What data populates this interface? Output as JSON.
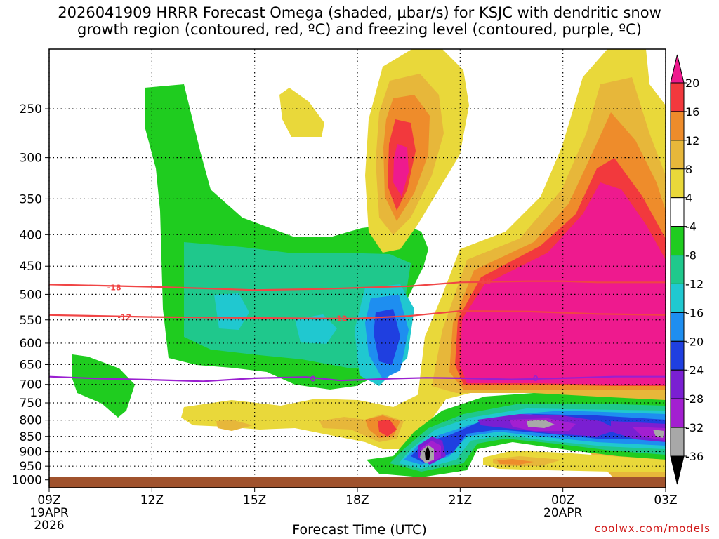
{
  "chart_data": {
    "type": "heatmap",
    "title": "2026041909 HRRR Forecast Omega (shaded, μbar/s) for KSJC with dendritic snow\ngrowth region (contoured, red, ºC) and freezing level (contoured, purple, ºC)",
    "xlabel": "Forecast Time (UTC)",
    "ylabel": "",
    "x_ticks": [
      {
        "hour": 0,
        "label": "09Z",
        "sub": [
          "19APR",
          "2026"
        ]
      },
      {
        "hour": 3,
        "label": "12Z",
        "sub": []
      },
      {
        "hour": 6,
        "label": "15Z",
        "sub": []
      },
      {
        "hour": 9,
        "label": "18Z",
        "sub": []
      },
      {
        "hour": 12,
        "label": "21Z",
        "sub": []
      },
      {
        "hour": 15,
        "label": "00Z",
        "sub": [
          "20APR"
        ]
      },
      {
        "hour": 18,
        "label": "03Z",
        "sub": []
      }
    ],
    "x_range_hours": [
      0,
      18
    ],
    "y_scale": "log-pressure",
    "y_range_hPa": [
      1030,
      200
    ],
    "y_ticks": [
      250,
      300,
      350,
      400,
      450,
      500,
      550,
      600,
      650,
      700,
      750,
      800,
      850,
      900,
      950,
      1000
    ],
    "grid": true,
    "colorbar": {
      "labels": [
        "20",
        "16",
        "12",
        "8",
        "4",
        "-4",
        "-8",
        "-12",
        "-16",
        "-20",
        "-24",
        "-28",
        "-32",
        "-36"
      ],
      "bins": [
        {
          "range": "20+",
          "color": "#ee1a8e"
        },
        {
          "range": "16..20",
          "color": "#f2393d"
        },
        {
          "range": "12..16",
          "color": "#ee8c2b"
        },
        {
          "range": "8..12",
          "color": "#e7b73a"
        },
        {
          "range": "4..8",
          "color": "#e9d83a"
        },
        {
          "range": "-4..4",
          "color": "#ffffff"
        },
        {
          "range": "-8..-4",
          "color": "#1fcc1f"
        },
        {
          "range": "-12..-8",
          "color": "#1fc88c"
        },
        {
          "range": "-16..-12",
          "color": "#20c8d0"
        },
        {
          "range": "-20..-16",
          "color": "#1e8ef0"
        },
        {
          "range": "-24..-20",
          "color": "#1f3fe0"
        },
        {
          "range": "-28..-24",
          "color": "#7a1fd2"
        },
        {
          "range": "-32..-28",
          "color": "#a31fd0"
        },
        {
          "range": "-36..-32",
          "color": "#a8a8a8"
        },
        {
          "range": "< -36",
          "color": "#000000"
        }
      ]
    },
    "contours": [
      {
        "value_label": "-18",
        "color": "#f04545",
        "points": [
          [
            0,
            482
          ],
          [
            3,
            486
          ],
          [
            4.5,
            489
          ],
          [
            6,
            492
          ],
          [
            8,
            490
          ],
          [
            9,
            488
          ],
          [
            10.5,
            485
          ],
          [
            12,
            478
          ],
          [
            14,
            476
          ],
          [
            15,
            476
          ],
          [
            16,
            478
          ],
          [
            18,
            478
          ]
        ],
        "label_at": [
          [
            1.9,
            487
          ],
          [
            12.7,
            476
          ]
        ]
      },
      {
        "value_label": "-12",
        "color": "#f04545",
        "points": [
          [
            0,
            540
          ],
          [
            3,
            544
          ],
          [
            6,
            546
          ],
          [
            8,
            547
          ],
          [
            9,
            547
          ],
          [
            10.5,
            542
          ],
          [
            12,
            532
          ],
          [
            14,
            533
          ],
          [
            16,
            538
          ],
          [
            18,
            540
          ]
        ],
        "label_at": [
          [
            2.2,
            544
          ],
          [
            8.5,
            547
          ]
        ]
      },
      {
        "value_label": "0",
        "color": "#9a1fd0",
        "points": [
          [
            0,
            680
          ],
          [
            1.5,
            685
          ],
          [
            3,
            688
          ],
          [
            4.5,
            692
          ],
          [
            6,
            684
          ],
          [
            7.5,
            681
          ],
          [
            8.5,
            690
          ],
          [
            10,
            685
          ],
          [
            11,
            683
          ],
          [
            12,
            684
          ],
          [
            13.5,
            687
          ],
          [
            15,
            684
          ],
          [
            16.5,
            680
          ],
          [
            18,
            680
          ]
        ],
        "label_at": [
          [
            7.7,
            685
          ],
          [
            14.2,
            684
          ]
        ]
      }
    ],
    "surface_color": "#a0522d"
  },
  "credit": "coolwx.com/models"
}
